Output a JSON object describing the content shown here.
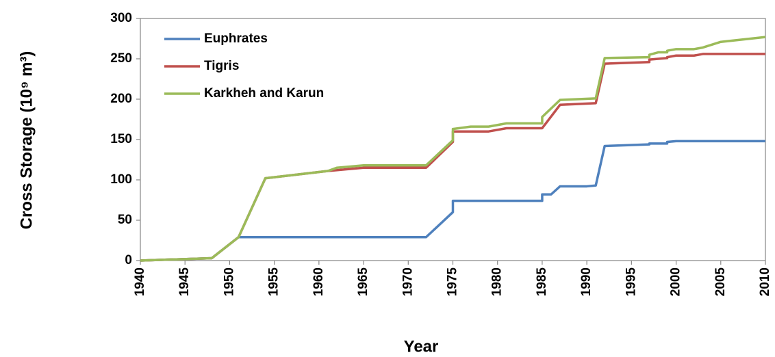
{
  "chart_data": {
    "type": "line",
    "x_label": "Year",
    "y_label": "Cross  Storage (10⁹ m³)",
    "xlim": [
      1940,
      2010
    ],
    "xticks": [
      1940,
      1945,
      1950,
      1955,
      1960,
      1965,
      1970,
      1975,
      1980,
      1985,
      1990,
      1995,
      2000,
      2005,
      2010
    ],
    "ylim": [
      0,
      300
    ],
    "yticks": [
      0,
      50,
      100,
      150,
      200,
      250,
      300
    ],
    "legend": "upper left",
    "series": [
      {
        "name": "Euphrates",
        "color": "#4f81bd",
        "x": [
          1940,
          1948,
          1951,
          1972,
          1975,
          1975,
          1985,
          1985,
          1986,
          1987,
          1990,
          1991,
          1992,
          1997,
          1997,
          1999,
          1999,
          2000,
          2010
        ],
        "values": [
          0,
          3,
          29,
          29,
          60,
          74,
          74,
          82,
          82,
          92,
          92,
          93,
          142,
          144,
          145,
          145,
          147,
          148,
          148
        ]
      },
      {
        "name": "Tigris",
        "color": "#c0504d",
        "x": [
          1940,
          1948,
          1951,
          1954,
          1961,
          1965,
          1972,
          1975,
          1975,
          1979,
          1981,
          1985,
          1987,
          1991,
          1992,
          1997,
          1997,
          1999,
          1999,
          2000,
          2002,
          2003,
          2010
        ],
        "values": [
          0,
          3,
          29,
          102,
          111,
          115,
          115,
          147,
          160,
          160,
          164,
          164,
          193,
          195,
          244,
          246,
          249,
          251,
          252,
          254,
          254,
          256,
          256
        ]
      },
      {
        "name": "Karkheh and Karun",
        "color": "#9bbb59",
        "x": [
          1940,
          1948,
          1951,
          1954,
          1961,
          1962,
          1965,
          1972,
          1975,
          1975,
          1977,
          1979,
          1981,
          1985,
          1985,
          1987,
          1991,
          1992,
          1997,
          1997,
          1998,
          1999,
          1999,
          2000,
          2002,
          2003,
          2005,
          2010
        ],
        "values": [
          0,
          3,
          29,
          102,
          111,
          115,
          118,
          118,
          149,
          163,
          166,
          166,
          170,
          170,
          178,
          199,
          201,
          251,
          252,
          255,
          258,
          258,
          260,
          262,
          262,
          264,
          271,
          277
        ]
      }
    ]
  }
}
